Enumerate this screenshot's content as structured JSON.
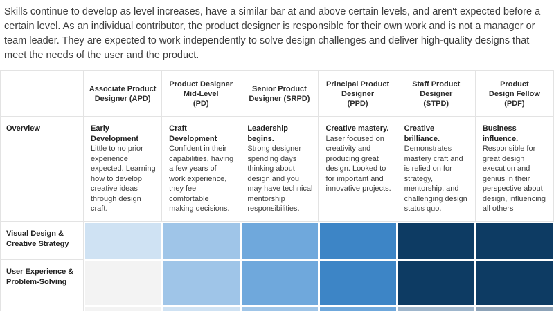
{
  "intro": "Skills continue to develop as level increases, have a similar bar at and above certain levels, and aren't expected before a certain level. As an individual contributor, the product designer is responsible for their own work and is not a manager or team leader. They are expected to work independently to solve design challenges and deliver high-quality designs that meet the needs of the user and the product.",
  "table": {
    "columns": [
      "Associate Product\nDesigner (APD)",
      "Product Designer\nMid-Level\n(PD)",
      "Senior Product\nDesigner (SRPD)",
      "Principal Product\nDesigner\n(PPD)",
      "Staff Product\nDesigner\n(STPD)",
      "Product\nDesign Fellow\n(PDF)"
    ],
    "overview": {
      "label": "Overview",
      "cells": [
        {
          "lead": "Early Development",
          "body": "Little to no prior experience expected. Learning how to develop creative ideas through design craft."
        },
        {
          "lead": "Craft Development",
          "body": "Confident in their capabilities, having a few years of work experience, they feel comfortable making decisions."
        },
        {
          "lead": "Leadership begins.",
          "body": "Strong designer spending days thinking about design and you may have technical mentorship responsibilities."
        },
        {
          "lead": "Creative mastery.",
          "body": "Laser focused on creativity and producing great design. Looked to for important and innovative projects."
        },
        {
          "lead": "Creative brilliance.",
          "body": "Demonstrates mastery craft and is relied on for strategy, mentorship, and challenging design status quo."
        },
        {
          "lead": "Business influence.",
          "body": "Responsible for great design execution and genius in their perspective about design, influencing all others"
        }
      ]
    },
    "skill_rows": [
      {
        "label": "Visual Design &\nCreative Strategy",
        "colors": [
          "#cfe2f3",
          "#9fc5e8",
          "#6fa8dc",
          "#3d85c6",
          "#0d3b63",
          "#0d3b63"
        ]
      },
      {
        "label": "User Experience &\nProblem-Solving",
        "colors": [
          "#f3f3f3",
          "#9fc5e8",
          "#6fa8dc",
          "#3d85c6",
          "#0d3b63",
          "#0d3b63"
        ]
      },
      {
        "label": "",
        "colors": [
          "#f3f3f3",
          "#cfe2f3",
          "#9fc5e8",
          "#6fa8dc",
          "#9fb6cc",
          "#8da3b8"
        ]
      }
    ]
  }
}
